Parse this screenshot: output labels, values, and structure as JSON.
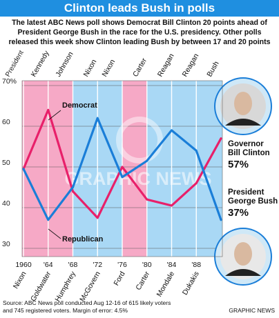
{
  "header": {
    "title": "Clinton leads Bush in polls",
    "subtitle": "The latest ABC News poll shows Democrat Bill Clinton 20 points ahead of President George Bush in the race for the U.S. presidency. Other polls released this week show Clinton leading Bush by between 17 and 20 points"
  },
  "colors": {
    "title_bg": "#1f8fe0",
    "democrat": "#e8206a",
    "republican": "#1a7ed8",
    "dem_band": "#f6a9c6",
    "rep_band": "#a9d8f5",
    "plot_bg": "#ffffff"
  },
  "chart_data": {
    "type": "line",
    "ylim": [
      30,
      70
    ],
    "yticks": [
      "70%",
      "60",
      "50",
      "40",
      "30"
    ],
    "ytick_values": [
      70,
      60,
      50,
      40,
      30
    ],
    "x": [
      1960,
      1964,
      1968,
      1972,
      1976,
      1980,
      1984,
      1988,
      1992
    ],
    "xtick_labels": [
      "1960",
      "'64",
      "'68",
      "'72",
      "'76",
      "'80",
      "'84",
      "'88"
    ],
    "xtick_years": [
      1960,
      1964,
      1968,
      1972,
      1976,
      1980,
      1984,
      1988
    ],
    "top_label": "President",
    "presidents": [
      {
        "name": "Kennedy",
        "party": "dem",
        "from": 1960,
        "to": 1963
      },
      {
        "name": "Johnson",
        "party": "dem",
        "from": 1963,
        "to": 1968
      },
      {
        "name": "Nixon",
        "party": "rep",
        "from": 1968,
        "to": 1972
      },
      {
        "name": "Nixon",
        "party": "rep",
        "from": 1972,
        "to": 1974
      },
      {
        "name": "Carter",
        "party": "dem",
        "from": 1976,
        "to": 1980
      },
      {
        "name": "Reagan",
        "party": "rep",
        "from": 1980,
        "to": 1984
      },
      {
        "name": "Reagan",
        "party": "rep",
        "from": 1984,
        "to": 1988
      },
      {
        "name": "Bush",
        "party": "rep",
        "from": 1988,
        "to": 1992
      }
    ],
    "bands": [
      {
        "party": "dem",
        "from": 1960,
        "to": 1968
      },
      {
        "party": "rep",
        "from": 1968,
        "to": 1976
      },
      {
        "party": "dem",
        "from": 1976,
        "to": 1980
      },
      {
        "party": "rep",
        "from": 1980,
        "to": 1992
      }
    ],
    "candidates": [
      {
        "name": "Nixon",
        "year": 1960
      },
      {
        "name": "Goldwater",
        "year": 1964
      },
      {
        "name": "Humphrey",
        "year": 1968
      },
      {
        "name": "McGovern",
        "year": 1972
      },
      {
        "name": "Ford",
        "year": 1976
      },
      {
        "name": "Carter",
        "year": 1980
      },
      {
        "name": "Mondale",
        "year": 1984
      },
      {
        "name": "Dukakis",
        "year": 1988
      }
    ],
    "series": [
      {
        "name": "Democrat",
        "color": "#e8206a",
        "values": [
          49.5,
          64,
          44,
          37.5,
          50,
          42,
          40.5,
          46,
          57
        ]
      },
      {
        "name": "Republican",
        "color": "#1a7ed8",
        "values": [
          49.5,
          37,
          45,
          62,
          47.5,
          51.5,
          59,
          54,
          37
        ]
      }
    ],
    "endpoint_labels": [
      {
        "line1": "Governor",
        "line2": "Bill Clinton",
        "value": "57%"
      },
      {
        "line1": "President",
        "line2": "George Bush",
        "value": "37%"
      }
    ]
  },
  "watermark": "GRAPHIC NEWS",
  "footer": {
    "source_line1": "Source: ABC News poll conducted Aug 12-16 of 615 likely voters",
    "source_line2": "and 745 registered voters. Margin of error: 4.5%",
    "credit": "GRAPHIC NEWS"
  }
}
